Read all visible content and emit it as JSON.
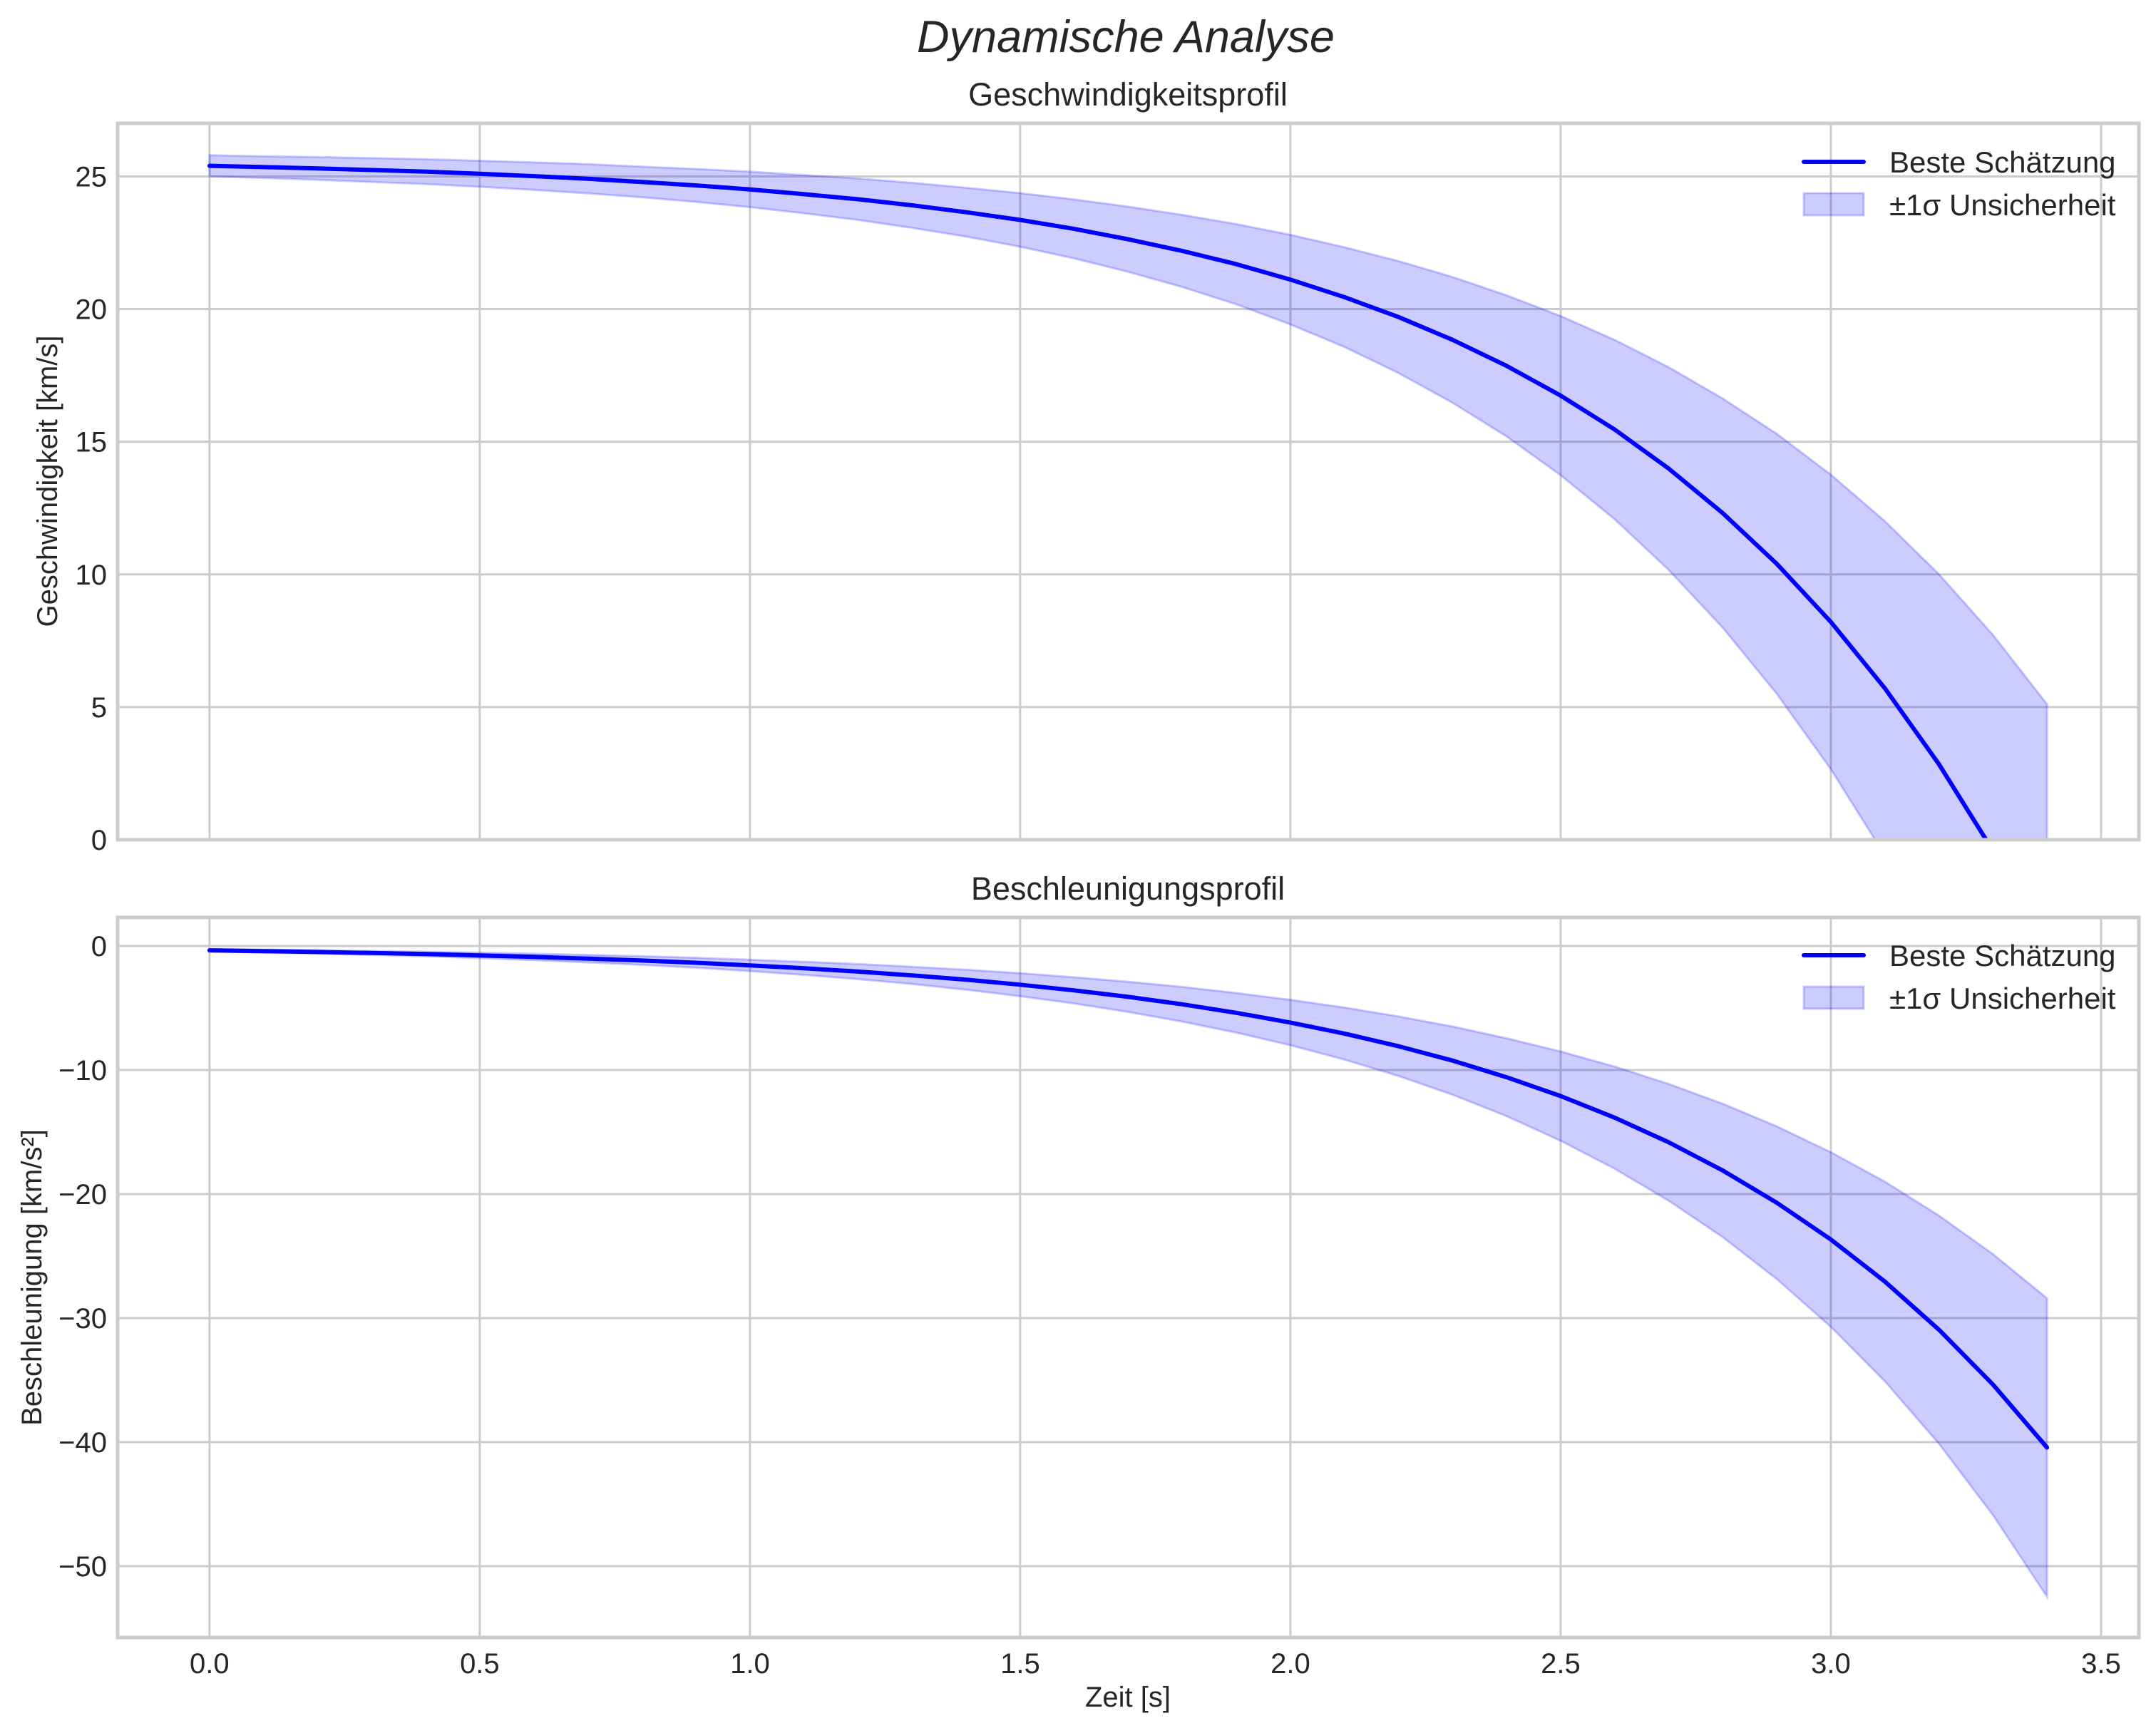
{
  "figure": {
    "suptitle": "Dynamische Analyse",
    "xlabel": "Zeit [s]"
  },
  "legend": {
    "line_label": "Beste Schätzung",
    "band_label": "±1σ Unsicherheit"
  },
  "colors": {
    "line": "#0000ff",
    "band": "#0000ff",
    "band_opacity": 0.2,
    "grid": "#cccccc",
    "text": "#262626"
  },
  "chart_data": [
    {
      "type": "line",
      "title": "Geschwindigkeitsprofil",
      "xlabel": "",
      "ylabel": "Geschwindigkeit [km/s]",
      "xlim": [
        -0.17,
        3.57
      ],
      "ylim": [
        0,
        27.0
      ],
      "xticks": [
        0.0,
        0.5,
        1.0,
        1.5,
        2.0,
        2.5,
        3.0,
        3.5
      ],
      "xtick_labels_visible": false,
      "yticks": [
        0,
        5,
        10,
        15,
        20,
        25
      ],
      "ytick_labels": [
        "0",
        "5",
        "10",
        "15",
        "20",
        "25"
      ],
      "grid": true,
      "legend_position": "upper right",
      "x": [
        0.0,
        0.1,
        0.2,
        0.3,
        0.4,
        0.5,
        0.6,
        0.7,
        0.8,
        0.9,
        1.0,
        1.1,
        1.2,
        1.3,
        1.4,
        1.5,
        1.6,
        1.7,
        1.8,
        1.9,
        2.0,
        2.1,
        2.2,
        2.3,
        2.4,
        2.5,
        2.6,
        2.7,
        2.8,
        2.9,
        3.0,
        3.1,
        3.2,
        3.3,
        3.4
      ],
      "series": [
        {
          "name": "Beste Schätzung",
          "values": [
            25.4,
            25.35,
            25.3,
            25.24,
            25.18,
            25.1,
            25.01,
            24.91,
            24.79,
            24.66,
            24.51,
            24.33,
            24.14,
            23.91,
            23.65,
            23.36,
            23.02,
            22.63,
            22.19,
            21.69,
            21.11,
            20.45,
            19.7,
            18.84,
            17.86,
            16.74,
            15.46,
            13.99,
            12.31,
            10.4,
            8.21,
            5.71,
            2.85,
            -0.41,
            -4.14
          ]
        },
        {
          "name": "±1σ Unsicherheit",
          "sigma": [
            0.4,
            0.41,
            0.43,
            0.45,
            0.47,
            0.49,
            0.52,
            0.55,
            0.58,
            0.62,
            0.67,
            0.72,
            0.78,
            0.85,
            0.92,
            1.01,
            1.11,
            1.23,
            1.36,
            1.51,
            1.69,
            1.88,
            2.11,
            2.37,
            2.66,
            3.0,
            3.38,
            3.82,
            4.32,
            4.9,
            5.55,
            6.3,
            7.16,
            8.13,
            9.25
          ]
        }
      ]
    },
    {
      "type": "line",
      "title": "Beschleunigungsprofil",
      "xlabel": "Zeit [s]",
      "ylabel": "Beschleunigung [km/s²]",
      "xlim": [
        -0.17,
        3.57
      ],
      "ylim": [
        -55.75,
        2.3
      ],
      "xticks": [
        0.0,
        0.5,
        1.0,
        1.5,
        2.0,
        2.5,
        3.0,
        3.5
      ],
      "xtick_labels": [
        "0.0",
        "0.5",
        "1.0",
        "1.5",
        "2.0",
        "2.5",
        "3.0",
        "3.5"
      ],
      "yticks": [
        0,
        -10,
        -20,
        -30,
        -40,
        -50
      ],
      "ytick_labels": [
        "0",
        "−10",
        "−20",
        "−30",
        "−40",
        "−50"
      ],
      "grid": true,
      "legend_position": "upper right",
      "x": [
        0.0,
        0.1,
        0.2,
        0.3,
        0.4,
        0.5,
        0.6,
        0.7,
        0.8,
        0.9,
        1.0,
        1.1,
        1.2,
        1.3,
        1.4,
        1.5,
        1.6,
        1.7,
        1.8,
        1.9,
        2.0,
        2.1,
        2.2,
        2.3,
        2.4,
        2.5,
        2.6,
        2.7,
        2.8,
        2.9,
        3.0,
        3.1,
        3.2,
        3.3,
        3.4
      ],
      "series": [
        {
          "name": "Beste Schätzung",
          "values": [
            -0.35,
            -0.41,
            -0.48,
            -0.56,
            -0.65,
            -0.76,
            -0.88,
            -1.02,
            -1.17,
            -1.35,
            -1.56,
            -1.8,
            -2.06,
            -2.37,
            -2.72,
            -3.12,
            -3.58,
            -4.1,
            -4.7,
            -5.39,
            -6.17,
            -7.06,
            -8.08,
            -9.24,
            -10.58,
            -12.1,
            -13.84,
            -15.83,
            -18.1,
            -20.7,
            -23.66,
            -27.05,
            -30.93,
            -35.36,
            -40.43
          ]
        },
        {
          "name": "±1σ Unsicherheit",
          "sigma": [
            0.1,
            0.12,
            0.14,
            0.16,
            0.19,
            0.22,
            0.26,
            0.3,
            0.35,
            0.4,
            0.46,
            0.53,
            0.61,
            0.7,
            0.81,
            0.93,
            1.06,
            1.22,
            1.4,
            1.6,
            1.83,
            2.1,
            2.4,
            2.75,
            3.14,
            3.6,
            4.12,
            4.71,
            5.38,
            6.16,
            7.04,
            8.05,
            9.2,
            10.52,
            12.03
          ]
        }
      ]
    }
  ]
}
